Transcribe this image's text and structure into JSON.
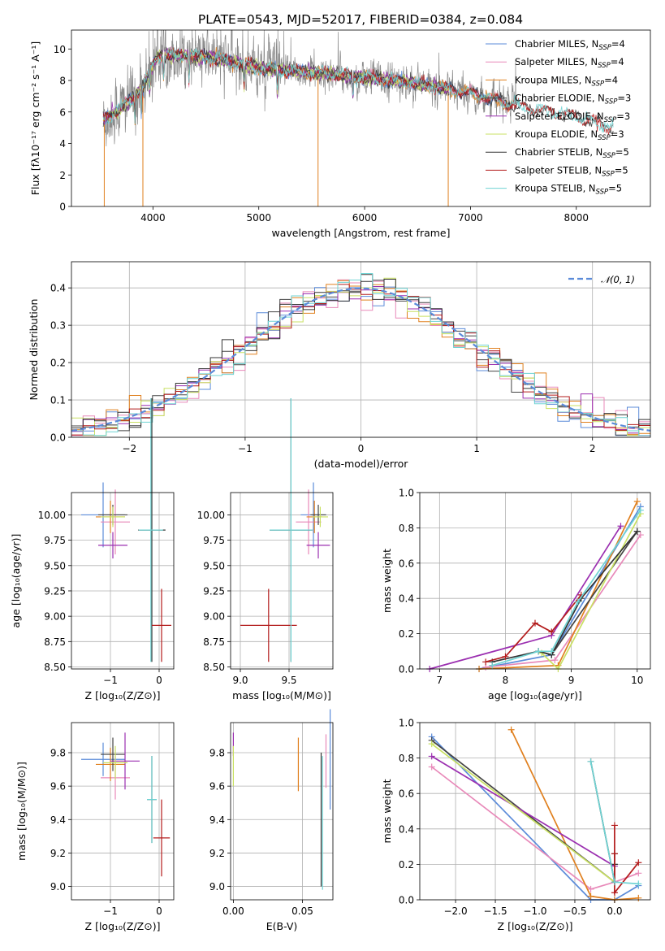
{
  "colors": {
    "chabrier_miles": "#5b8bd9",
    "salpeter_miles": "#e889b9",
    "kroupa_miles": "#e0801f",
    "chabrier_elodie": "#444444",
    "salpeter_elodie": "#9b2fb0",
    "kroupa_elodie": "#c9e063",
    "chabrier_stelib": "#333333",
    "salpeter_stelib": "#b31c1c",
    "kroupa_stelib": "#6fd3d3",
    "normal_fit": "#5b8bd9"
  },
  "chart_data": [
    {
      "id": "spectrum",
      "type": "line",
      "title": "PLATE=0543, MJD=52017, FIBERID=0384, z=0.084",
      "xlabel": "wavelength [Angstrom, rest frame]",
      "ylabel": "Flux [fλ10⁻¹⁷ erg cm⁻² s⁻¹ A⁻¹]",
      "xlim": [
        3230,
        8700
      ],
      "ylim": [
        0,
        11.2
      ],
      "xticks": [
        "4000",
        "5000",
        "6000",
        "7000",
        "8000"
      ],
      "yticks": [
        "0",
        "2",
        "4",
        "6",
        "8",
        "10"
      ],
      "grid": false,
      "legend_position": "top-right",
      "legend": [
        {
          "key": "chabrier_miles",
          "label": "Chabrier MILES, N",
          "sub": "SSP",
          "suffix": "=4"
        },
        {
          "key": "salpeter_miles",
          "label": "Salpeter MILES, N",
          "sub": "SSP",
          "suffix": "=4"
        },
        {
          "key": "kroupa_miles",
          "label": "Kroupa MILES, N",
          "sub": "SSP",
          "suffix": "=4"
        },
        {
          "key": "chabrier_elodie",
          "label": "Chabrier ELODIE, N",
          "sub": "SSP",
          "suffix": "=3"
        },
        {
          "key": "salpeter_elodie",
          "label": "Salpeter ELODIE, N",
          "sub": "SSP",
          "suffix": "=3"
        },
        {
          "key": "kroupa_elodie",
          "label": "Kroupa ELODIE, N",
          "sub": "SSP",
          "suffix": "=3"
        },
        {
          "key": "chabrier_stelib",
          "label": "Chabrier STELIB, N",
          "sub": "SSP",
          "suffix": "=5"
        },
        {
          "key": "salpeter_stelib",
          "label": "Salpeter STELIB, N",
          "sub": "SSP",
          "suffix": "=5"
        },
        {
          "key": "kroupa_stelib",
          "label": "Kroupa STELIB, N",
          "sub": "SSP",
          "suffix": "=5"
        }
      ],
      "continuum": [
        [
          3530,
          5.5
        ],
        [
          3650,
          6.0
        ],
        [
          3800,
          6.8
        ],
        [
          3900,
          7.6
        ],
        [
          4050,
          9.6
        ],
        [
          4300,
          9.6
        ],
        [
          4600,
          9.4
        ],
        [
          5000,
          8.8
        ],
        [
          5500,
          8.5
        ],
        [
          6000,
          8.2
        ],
        [
          6500,
          7.8
        ],
        [
          7000,
          7.2
        ],
        [
          7500,
          6.3
        ],
        [
          8000,
          5.7
        ],
        [
          8350,
          5.0
        ]
      ]
    },
    {
      "id": "residuals",
      "type": "line",
      "title": "",
      "xlabel": "(data-model)/error",
      "ylabel": "Normed distribution",
      "xlim": [
        -2.5,
        2.5
      ],
      "ylim": [
        0,
        0.47
      ],
      "xticks": [
        "−2",
        "−1",
        "0",
        "1",
        "2"
      ],
      "yticks": [
        "0.0",
        "0.1",
        "0.2",
        "0.3",
        "0.4"
      ],
      "grid": true,
      "legend_position": "top-right",
      "legend": [
        {
          "key": "normal_fit",
          "label": "𝒩(0, 1)"
        }
      ],
      "histogram": {
        "bin_width": 0.1,
        "range": [
          -2.5,
          2.5
        ],
        "n_series": 9
      }
    },
    {
      "id": "age_vs_Z",
      "type": "scatter",
      "xlabel": "Z [log₁₀(Z/Z⊙)]",
      "ylabel": "age  [log₁₀(age/yr)]",
      "xlim": [
        -1.8,
        0.3
      ],
      "ylim": [
        8.48,
        10.22
      ],
      "xticks": [
        "−1",
        "0"
      ],
      "yticks": [
        "8.50",
        "8.75",
        "9.00",
        "9.25",
        "9.50",
        "9.75",
        "10.00"
      ],
      "grid": true,
      "points": [
        {
          "key": "chabrier_miles",
          "x": -1.15,
          "y": 10.0,
          "xerr": 0.45,
          "yerr": 0.32
        },
        {
          "key": "salpeter_miles",
          "x": -0.9,
          "y": 9.93,
          "xerr": 0.3,
          "yerr": 0.32
        },
        {
          "key": "kroupa_miles",
          "x": -1.0,
          "y": 9.98,
          "xerr": 0.3,
          "yerr": 0.16
        },
        {
          "key": "chabrier_elodie",
          "x": -0.95,
          "y": 10.0,
          "xerr": 0.3,
          "yerr": 0.1
        },
        {
          "key": "salpeter_elodie",
          "x": -0.95,
          "y": 9.7,
          "xerr": 0.3,
          "yerr": 0.13
        },
        {
          "key": "kroupa_elodie",
          "x": -0.95,
          "y": 9.98,
          "xerr": 0.25,
          "yerr": 0.1
        },
        {
          "key": "chabrier_stelib",
          "x": -0.15,
          "y": 9.85,
          "xerr": 0.28,
          "yerr": 1.3
        },
        {
          "key": "salpeter_stelib",
          "x": 0.05,
          "y": 8.91,
          "xerr": 0.2,
          "yerr": 0.36
        },
        {
          "key": "kroupa_stelib",
          "x": -0.17,
          "y": 9.85,
          "xerr": 0.25,
          "yerr": 1.3
        }
      ]
    },
    {
      "id": "age_vs_mass",
      "type": "scatter",
      "xlabel": "mass [log₁₀(M/M⊙)]",
      "ylabel": "",
      "xlim": [
        8.9,
        9.95
      ],
      "ylim": [
        8.48,
        10.22
      ],
      "xticks": [
        "9.0",
        "9.5"
      ],
      "yticks": [
        "8.50",
        "8.75",
        "9.00",
        "9.25",
        "9.50",
        "9.75",
        "10.00"
      ],
      "grid": true,
      "points": [
        {
          "key": "chabrier_miles",
          "x": 9.75,
          "y": 10.0,
          "xerr": 0.13,
          "yerr": 0.32
        },
        {
          "key": "salpeter_miles",
          "x": 9.7,
          "y": 9.93,
          "xerr": 0.13,
          "yerr": 0.32
        },
        {
          "key": "kroupa_miles",
          "x": 9.76,
          "y": 9.98,
          "xerr": 0.08,
          "yerr": 0.16
        },
        {
          "key": "chabrier_elodie",
          "x": 9.8,
          "y": 10.0,
          "xerr": 0.08,
          "yerr": 0.1
        },
        {
          "key": "salpeter_elodie",
          "x": 9.8,
          "y": 9.7,
          "xerr": 0.12,
          "yerr": 0.13
        },
        {
          "key": "kroupa_elodie",
          "x": 9.82,
          "y": 9.98,
          "xerr": 0.08,
          "yerr": 0.1
        },
        {
          "key": "chabrier_stelib",
          "x": 9.52,
          "y": 9.85,
          "xerr": 0.22,
          "yerr": 1.3
        },
        {
          "key": "salpeter_stelib",
          "x": 9.29,
          "y": 8.91,
          "xerr": 0.29,
          "yerr": 0.36
        },
        {
          "key": "kroupa_stelib",
          "x": 9.52,
          "y": 9.85,
          "xerr": 0.22,
          "yerr": 1.3
        }
      ]
    },
    {
      "id": "mass_weight_vs_age",
      "type": "line",
      "xlabel": "age  [log₁₀(age/yr)]",
      "ylabel": "mass weight",
      "xlim": [
        6.7,
        10.2
      ],
      "ylim": [
        0,
        1.0
      ],
      "xticks": [
        "7",
        "8",
        "9",
        "10"
      ],
      "yticks": [
        "0.0",
        "0.2",
        "0.4",
        "0.6",
        "0.8",
        "1.0"
      ],
      "grid": true,
      "series": [
        {
          "key": "chabrier_miles",
          "x": [
            7.6,
            8.7,
            10.05
          ],
          "y": [
            0.0,
            0.08,
            0.92
          ]
        },
        {
          "key": "salpeter_miles",
          "x": [
            7.7,
            8.75,
            10.05
          ],
          "y": [
            0.01,
            0.05,
            0.76
          ]
        },
        {
          "key": "kroupa_miles",
          "x": [
            7.6,
            8.8,
            10.0
          ],
          "y": [
            0.0,
            0.02,
            0.95
          ]
        },
        {
          "key": "chabrier_elodie",
          "x": [
            8.5,
            8.7,
            10.0
          ],
          "y": [
            0.1,
            0.08,
            0.78
          ]
        },
        {
          "key": "salpeter_elodie",
          "x": [
            6.85,
            8.7,
            9.75
          ],
          "y": [
            0.0,
            0.19,
            0.81
          ]
        },
        {
          "key": "kroupa_elodie",
          "x": [
            8.55,
            8.8,
            10.05
          ],
          "y": [
            0.09,
            0.0,
            0.88
          ]
        },
        {
          "key": "chabrier_stelib",
          "x": [
            7.8,
            8.5,
            8.7,
            9.15,
            10.0
          ],
          "y": [
            0.04,
            0.1,
            0.08,
            0.4,
            0.78
          ]
        },
        {
          "key": "salpeter_stelib",
          "x": [
            7.7,
            8.0,
            8.45,
            8.7,
            9.15
          ],
          "y": [
            0.04,
            0.07,
            0.26,
            0.21,
            0.42
          ]
        },
        {
          "key": "kroupa_stelib",
          "x": [
            7.8,
            8.5,
            8.7,
            9.1,
            10.05
          ],
          "y": [
            0.02,
            0.1,
            0.1,
            0.38,
            0.9
          ]
        }
      ]
    },
    {
      "id": "mass_vs_Z",
      "type": "scatter",
      "xlabel": "Z [log₁₀(Z/Z⊙)]",
      "ylabel": "mass [log₁₀(M/M⊙)]",
      "xlim": [
        -1.8,
        0.3
      ],
      "ylim": [
        8.92,
        9.98
      ],
      "xticks": [
        "−1",
        "0"
      ],
      "yticks": [
        "9.0",
        "9.2",
        "9.4",
        "9.6",
        "9.8"
      ],
      "grid": true,
      "points": [
        {
          "key": "chabrier_miles",
          "x": -1.15,
          "y": 9.76,
          "xerr": 0.45,
          "yerr": 0.1
        },
        {
          "key": "salpeter_miles",
          "x": -0.9,
          "y": 9.65,
          "xerr": 0.3,
          "yerr": 0.13
        },
        {
          "key": "kroupa_miles",
          "x": -1.0,
          "y": 9.73,
          "xerr": 0.3,
          "yerr": 0.1
        },
        {
          "key": "chabrier_elodie",
          "x": -0.95,
          "y": 9.79,
          "xerr": 0.25,
          "yerr": 0.1
        },
        {
          "key": "salpeter_elodie",
          "x": -0.7,
          "y": 9.75,
          "xerr": 0.3,
          "yerr": 0.17
        },
        {
          "key": "kroupa_elodie",
          "x": -0.9,
          "y": 9.74,
          "xerr": 0.25,
          "yerr": 0.1
        },
        {
          "key": "chabrier_stelib",
          "x": -0.15,
          "y": 9.52,
          "xerr": 0.1,
          "yerr": 0.26
        },
        {
          "key": "salpeter_stelib",
          "x": 0.05,
          "y": 9.29,
          "xerr": 0.17,
          "yerr": 0.23
        },
        {
          "key": "kroupa_stelib",
          "x": -0.15,
          "y": 9.52,
          "xerr": 0.1,
          "yerr": 0.26
        }
      ]
    },
    {
      "id": "mass_vs_EBV",
      "type": "scatter",
      "xlabel": "E(B-V)",
      "ylabel": "",
      "xlim": [
        -0.002,
        0.072
      ],
      "ylim": [
        8.92,
        9.98
      ],
      "xticks": [
        "0.00",
        "0.05"
      ],
      "yticks": [
        "9.0",
        "9.2",
        "9.4",
        "9.6",
        "9.8"
      ],
      "grid": true,
      "points": [
        {
          "key": "salpeter_elodie",
          "x": 0.0,
          "y": 9.85,
          "xerr": 0,
          "yerr": 0.07
        },
        {
          "key": "kroupa_elodie",
          "x": 0.0,
          "y": 9.72,
          "xerr": 0,
          "yerr": 0.12
        },
        {
          "key": "kroupa_miles",
          "x": 0.047,
          "y": 9.73,
          "xerr": 0,
          "yerr": 0.16
        },
        {
          "key": "salpeter_miles",
          "x": 0.067,
          "y": 9.75,
          "xerr": 0,
          "yerr": 0.16
        },
        {
          "key": "chabrier_miles",
          "x": 0.07,
          "y": 9.76,
          "xerr": 0,
          "yerr": 0.3
        },
        {
          "key": "chabrier_stelib",
          "x": 0.0635,
          "y": 9.4,
          "xerr": 0,
          "yerr": 0.4
        },
        {
          "key": "kroupa_stelib",
          "x": 0.0645,
          "y": 9.38,
          "xerr": 0,
          "yerr": 0.4
        }
      ]
    },
    {
      "id": "mass_weight_vs_Z",
      "type": "line",
      "xlabel": "Z [log₁₀(Z/Z⊙)]",
      "ylabel": "mass weight",
      "xlim": [
        -2.45,
        0.45
      ],
      "ylim": [
        0,
        1.0
      ],
      "xticks": [
        "−2.0",
        "−1.5",
        "−1.0",
        "−0.5",
        "0.0"
      ],
      "yticks": [
        "0.0",
        "0.2",
        "0.4",
        "0.6",
        "0.8",
        "1.0"
      ],
      "grid": true,
      "series": [
        {
          "key": "chabrier_miles",
          "x": [
            -2.3,
            -0.3,
            0.0,
            0.3
          ],
          "y": [
            0.92,
            0.0,
            0.0,
            0.08
          ]
        },
        {
          "key": "salpeter_miles",
          "x": [
            -2.3,
            -0.3,
            0.0,
            0.3
          ],
          "y": [
            0.75,
            0.06,
            0.1,
            0.15
          ]
        },
        {
          "key": "kroupa_miles",
          "x": [
            -1.3,
            -0.3,
            0.0,
            0.3
          ],
          "y": [
            0.96,
            0.02,
            0.0,
            0.01
          ]
        },
        {
          "key": "chabrier_elodie",
          "x": [
            -2.3,
            0.0
          ],
          "y": [
            0.9,
            0.1
          ]
        },
        {
          "key": "salpeter_elodie",
          "x": [
            -2.3,
            0.0
          ],
          "y": [
            0.81,
            0.19
          ]
        },
        {
          "key": "kroupa_elodie",
          "x": [
            -2.3,
            0.0
          ],
          "y": [
            0.88,
            0.1
          ]
        },
        {
          "key": "chabrier_stelib",
          "x": [
            -0.3,
            0.0,
            0.0,
            0.0
          ],
          "y": [
            0.78,
            0.1,
            0.2,
            0.26
          ]
        },
        {
          "key": "salpeter_stelib",
          "x": [
            0.0,
            0.0,
            0.0,
            0.3
          ],
          "y": [
            0.42,
            0.26,
            0.04,
            0.21
          ]
        },
        {
          "key": "kroupa_stelib",
          "x": [
            -0.3,
            0.0,
            0.3
          ],
          "y": [
            0.78,
            0.1,
            0.09
          ]
        }
      ]
    }
  ]
}
